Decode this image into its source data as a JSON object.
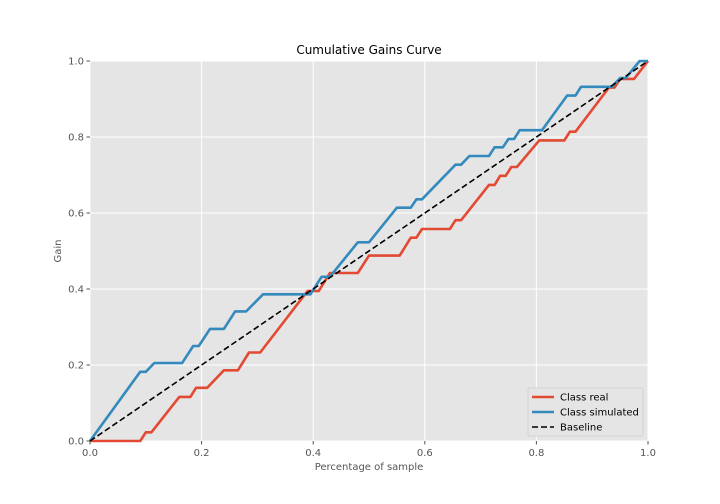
{
  "chart_data": {
    "type": "line",
    "title": "Cumulative Gains Curve",
    "xlabel": "Percentage of sample",
    "ylabel": "Gain",
    "xlim": [
      0,
      1
    ],
    "ylim": [
      0,
      1
    ],
    "xticks": [
      "0.0",
      "0.2",
      "0.4",
      "0.6",
      "0.8",
      "1.0"
    ],
    "yticks": [
      "0.0",
      "0.2",
      "0.4",
      "0.6",
      "0.8",
      "1.0"
    ],
    "grid": true,
    "legend_position": "lower-right",
    "series": [
      {
        "name": "Class real",
        "color": "#e24a33",
        "style": "solid",
        "points": [
          [
            0.0,
            0.0
          ],
          [
            0.09,
            0.0
          ],
          [
            0.1,
            0.023
          ],
          [
            0.11,
            0.023
          ],
          [
            0.16,
            0.116
          ],
          [
            0.18,
            0.116
          ],
          [
            0.19,
            0.14
          ],
          [
            0.21,
            0.14
          ],
          [
            0.24,
            0.186
          ],
          [
            0.265,
            0.186
          ],
          [
            0.285,
            0.233
          ],
          [
            0.305,
            0.233
          ],
          [
            0.39,
            0.395
          ],
          [
            0.41,
            0.395
          ],
          [
            0.43,
            0.442
          ],
          [
            0.48,
            0.442
          ],
          [
            0.5,
            0.488
          ],
          [
            0.555,
            0.488
          ],
          [
            0.575,
            0.535
          ],
          [
            0.585,
            0.535
          ],
          [
            0.595,
            0.558
          ],
          [
            0.645,
            0.558
          ],
          [
            0.655,
            0.581
          ],
          [
            0.665,
            0.581
          ],
          [
            0.715,
            0.674
          ],
          [
            0.725,
            0.674
          ],
          [
            0.735,
            0.698
          ],
          [
            0.745,
            0.698
          ],
          [
            0.755,
            0.721
          ],
          [
            0.765,
            0.721
          ],
          [
            0.805,
            0.791
          ],
          [
            0.85,
            0.791
          ],
          [
            0.86,
            0.814
          ],
          [
            0.87,
            0.814
          ],
          [
            0.93,
            0.93
          ],
          [
            0.94,
            0.93
          ],
          [
            0.95,
            0.953
          ],
          [
            0.975,
            0.953
          ],
          [
            1.0,
            1.0
          ]
        ]
      },
      {
        "name": "Class simulated",
        "color": "#348abd",
        "style": "solid",
        "points": [
          [
            0.0,
            0.0
          ],
          [
            0.09,
            0.182
          ],
          [
            0.1,
            0.182
          ],
          [
            0.115,
            0.205
          ],
          [
            0.165,
            0.205
          ],
          [
            0.185,
            0.25
          ],
          [
            0.195,
            0.25
          ],
          [
            0.215,
            0.295
          ],
          [
            0.24,
            0.295
          ],
          [
            0.26,
            0.341
          ],
          [
            0.28,
            0.341
          ],
          [
            0.31,
            0.386
          ],
          [
            0.395,
            0.386
          ],
          [
            0.415,
            0.432
          ],
          [
            0.43,
            0.432
          ],
          [
            0.48,
            0.523
          ],
          [
            0.5,
            0.523
          ],
          [
            0.55,
            0.614
          ],
          [
            0.575,
            0.614
          ],
          [
            0.585,
            0.636
          ],
          [
            0.595,
            0.636
          ],
          [
            0.655,
            0.727
          ],
          [
            0.665,
            0.727
          ],
          [
            0.68,
            0.75
          ],
          [
            0.715,
            0.75
          ],
          [
            0.725,
            0.773
          ],
          [
            0.74,
            0.773
          ],
          [
            0.75,
            0.795
          ],
          [
            0.76,
            0.795
          ],
          [
            0.77,
            0.818
          ],
          [
            0.81,
            0.818
          ],
          [
            0.855,
            0.909
          ],
          [
            0.87,
            0.909
          ],
          [
            0.88,
            0.932
          ],
          [
            0.935,
            0.932
          ],
          [
            0.95,
            0.955
          ],
          [
            0.96,
            0.955
          ],
          [
            0.985,
            1.0
          ],
          [
            1.0,
            1.0
          ]
        ]
      },
      {
        "name": "Baseline",
        "color": "#000000",
        "style": "dashed",
        "points": [
          [
            0.0,
            0.0
          ],
          [
            1.0,
            1.0
          ]
        ]
      }
    ]
  }
}
